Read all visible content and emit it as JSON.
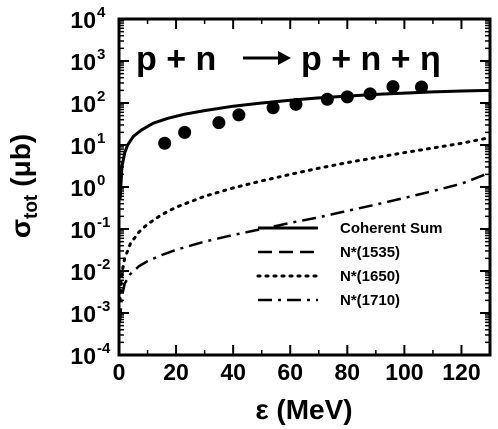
{
  "chart_data": {
    "type": "line",
    "reaction": {
      "lhs": "p + n",
      "rhs": "p + n + η"
    },
    "xlabel": "ε (MeV)",
    "ylabel": {
      "symbol": "σ",
      "subscript": "tot",
      "unit": "(μb)"
    },
    "xlim": [
      0,
      130
    ],
    "ylim_log10": [
      -4,
      4
    ],
    "y_scale": "log",
    "x_ticks": [
      {
        "value": 0,
        "label": "0"
      },
      {
        "value": 20,
        "label": "20"
      },
      {
        "value": 40,
        "label": "40"
      },
      {
        "value": 60,
        "label": "60"
      },
      {
        "value": 80,
        "label": "80"
      },
      {
        "value": 100,
        "label": "100"
      },
      {
        "value": 120,
        "label": "120"
      }
    ],
    "y_ticks": [
      {
        "exp": -4,
        "base": "10",
        "sup": "-4"
      },
      {
        "exp": -3,
        "base": "10",
        "sup": "-3"
      },
      {
        "exp": -2,
        "base": "10",
        "sup": "-2"
      },
      {
        "exp": -1,
        "base": "10",
        "sup": "-1"
      },
      {
        "exp": 0,
        "base": "10",
        "sup": "0"
      },
      {
        "exp": 1,
        "base": "10",
        "sup": "1"
      },
      {
        "exp": 2,
        "base": "10",
        "sup": "2"
      },
      {
        "exp": 3,
        "base": "10",
        "sup": "3"
      },
      {
        "exp": 4,
        "base": "10",
        "sup": "4"
      }
    ],
    "legend_position": "bottom-right",
    "series": [
      {
        "name": "Coherent Sum",
        "style": "solid",
        "x": [
          0.4,
          1,
          2,
          3,
          5,
          8,
          12,
          17,
          23,
          30,
          40,
          50,
          60,
          70,
          80,
          90,
          100,
          110,
          120,
          130
        ],
        "y": [
          0.5,
          3,
          6.5,
          10,
          16,
          23,
          33,
          43,
          54,
          66,
          84,
          100,
          116,
          132,
          146,
          160,
          172,
          184,
          193,
          200
        ]
      },
      {
        "name": "N*(1535)",
        "style": "dashed",
        "x": [
          0.4,
          1,
          2,
          3,
          5,
          8,
          12,
          17,
          23,
          30,
          40,
          50,
          60,
          70,
          80,
          90,
          100,
          110,
          120,
          130
        ],
        "y": [
          0.5,
          3,
          6.5,
          10,
          16,
          23,
          33,
          43,
          54,
          66,
          84,
          100,
          116,
          132,
          146,
          160,
          172,
          184,
          193,
          200
        ]
      },
      {
        "name": "N*(1650)",
        "style": "dotted",
        "x": [
          0.3,
          1,
          2,
          4,
          7,
          10,
          15,
          20,
          30,
          40,
          50,
          60,
          70,
          80,
          90,
          100,
          110,
          120,
          130
        ],
        "y": [
          0.002,
          0.009,
          0.02,
          0.045,
          0.085,
          0.13,
          0.22,
          0.33,
          0.6,
          0.95,
          1.4,
          2.0,
          2.8,
          3.8,
          5.0,
          6.6,
          8.5,
          11,
          15
        ]
      },
      {
        "name": "N*(1710)",
        "style": "dashdot",
        "x": [
          0.3,
          1,
          2,
          4,
          7,
          10,
          15,
          20,
          30,
          40,
          50,
          60,
          70,
          80,
          90,
          100,
          110,
          120,
          130
        ],
        "y": [
          0.0006,
          0.0025,
          0.005,
          0.0085,
          0.013,
          0.017,
          0.024,
          0.032,
          0.05,
          0.072,
          0.1,
          0.14,
          0.19,
          0.27,
          0.38,
          0.55,
          0.8,
          1.2,
          2.2
        ]
      }
    ],
    "points": {
      "x": [
        16,
        23,
        35,
        42,
        54,
        62,
        73,
        80,
        88,
        96,
        106
      ],
      "y": [
        11,
        20,
        34,
        52,
        77,
        93,
        123,
        140,
        165,
        245,
        240
      ]
    }
  }
}
